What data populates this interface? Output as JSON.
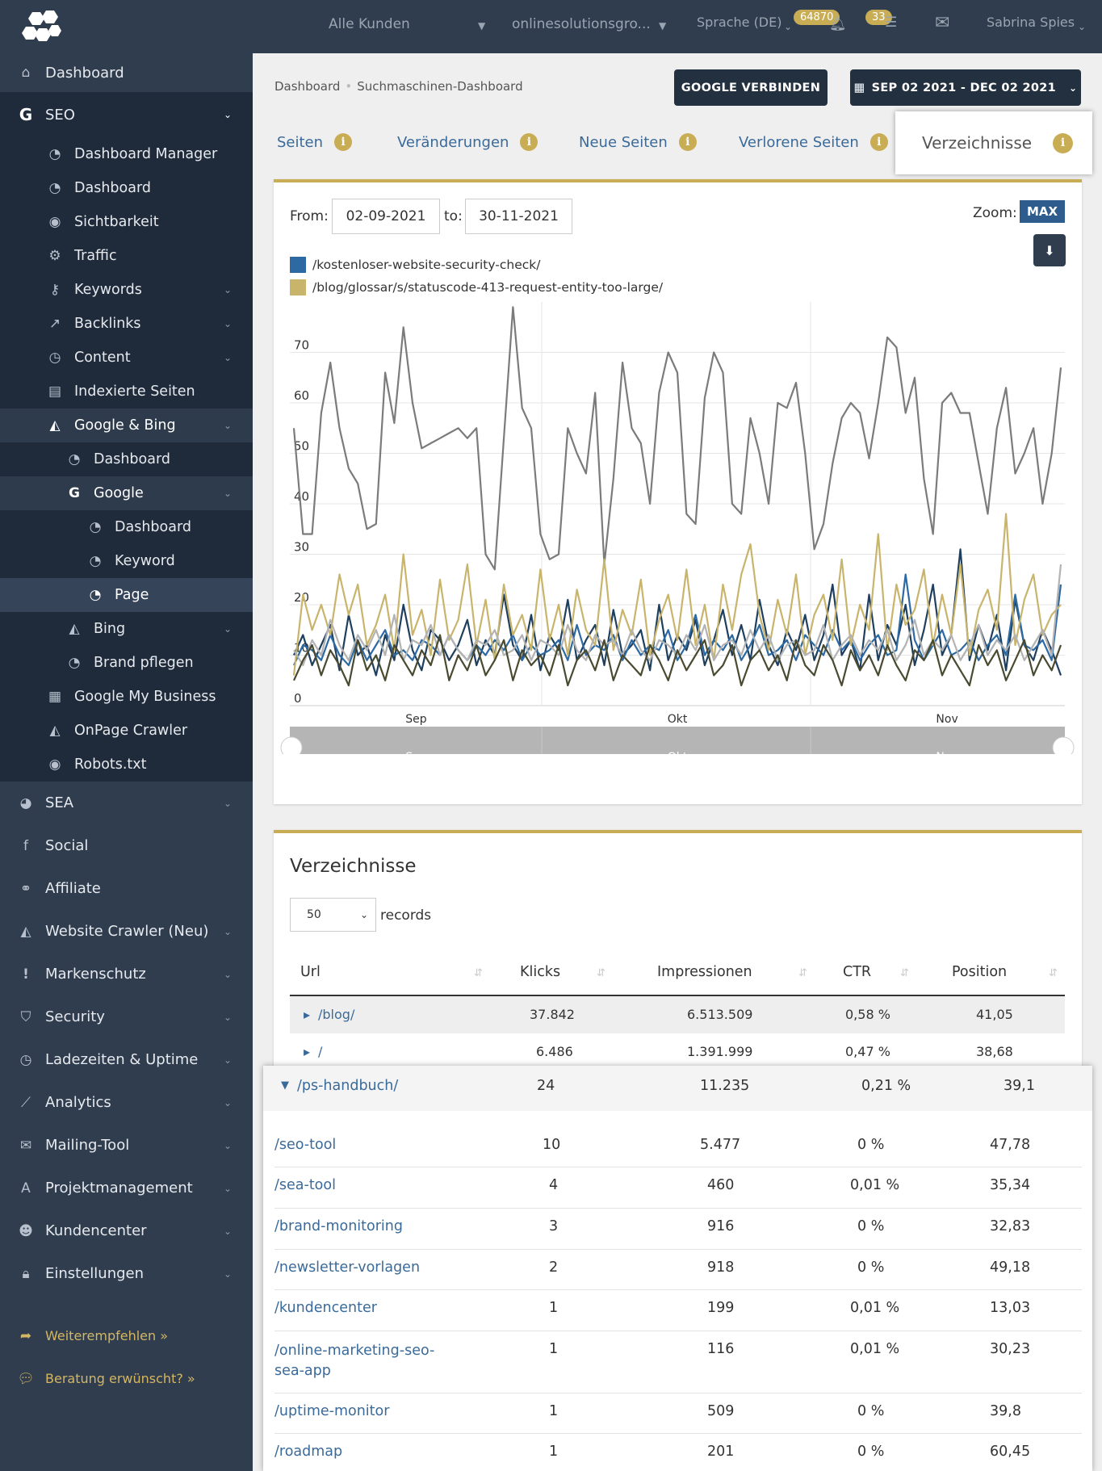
{
  "topbar": {
    "customers": "Alle Kunden",
    "project": "onlinesolutionsgro...",
    "language": "Sprache (DE)",
    "notif_count": "64870",
    "task_count": "33",
    "user": "Sabrina Spies"
  },
  "sidebar": {
    "dashboard": "Dashboard",
    "seo": "SEO",
    "dashboard_manager": "Dashboard Manager",
    "seo_dashboard": "Dashboard",
    "sichtbarkeit": "Sichtbarkeit",
    "traffic": "Traffic",
    "keywords": "Keywords",
    "backlinks": "Backlinks",
    "content": "Content",
    "indexierte": "Indexierte Seiten",
    "google_bing": "Google & Bing",
    "gb_dashboard": "Dashboard",
    "google": "Google",
    "g_dashboard": "Dashboard",
    "g_keyword": "Keyword",
    "g_page": "Page",
    "bing": "Bing",
    "brand": "Brand pflegen",
    "gmb": "Google My Business",
    "onpage": "OnPage Crawler",
    "robots": "Robots.txt",
    "sea": "SEA",
    "social": "Social",
    "affiliate": "Affiliate",
    "website_crawler": "Website Crawler (Neu)",
    "markenschutz": "Markenschutz",
    "security": "Security",
    "ladezeiten": "Ladezeiten & Uptime",
    "analytics": "Analytics",
    "mailing": "Mailing-Tool",
    "projekt": "Projektmanagement",
    "kundencenter": "Kundencenter",
    "einstellungen": "Einstellungen",
    "weiterempfehlen": "Weiterempfehlen »",
    "beratung": "Beratung erwünscht? »"
  },
  "breadcrumb": {
    "home": "Dashboard",
    "current": "Suchmaschinen-Dashboard"
  },
  "buttons": {
    "google_connect": "GOOGLE VERBINDEN",
    "date_range": "SEP 02 2021 - DEC 02 2021"
  },
  "tabs": {
    "seiten": "Seiten",
    "veraenderungen": "Veränderungen",
    "neue": "Neue Seiten",
    "verlorene": "Verlorene Seiten",
    "verzeichnisse": "Verzeichnisse"
  },
  "chart_panel": {
    "from_label": "From:",
    "from": "02-09-2021",
    "to_label": "to:",
    "to": "30-11-2021",
    "zoom_label": "Zoom:",
    "zoom": "MAX",
    "navigator_labels": [
      "Sep",
      "Okt",
      "Nov"
    ]
  },
  "chart_data": {
    "type": "line",
    "x_labels": [
      "Sep",
      "Okt",
      "Nov"
    ],
    "y_ticks": [
      0,
      10,
      20,
      30,
      40,
      50,
      60,
      70
    ],
    "ylim": [
      0,
      80
    ],
    "grid": true,
    "legend": [
      {
        "name": "/kostenloser-website-security-check/",
        "color": "#2d6aa3"
      },
      {
        "name": "/blog/glossar/s/statuscode-413-request-entity-too-large/",
        "color": "#c9b46c"
      }
    ],
    "series": [
      {
        "color": "#7b7b7b",
        "values": [
          55,
          34,
          34,
          58,
          68,
          55,
          47,
          44,
          35,
          36,
          66,
          56,
          75,
          60,
          51,
          52,
          53,
          54,
          55,
          53,
          55,
          30,
          27,
          53,
          79,
          59,
          55,
          34,
          29,
          30,
          55,
          50,
          46,
          62,
          28,
          45,
          68,
          55,
          52,
          40,
          62,
          70,
          66,
          38,
          36,
          61,
          70,
          66,
          40,
          38,
          57,
          50,
          40,
          60,
          59,
          64,
          50,
          31,
          36,
          48,
          57,
          60,
          58,
          49,
          60,
          73,
          71,
          58,
          65,
          45,
          34,
          60,
          62,
          58,
          58,
          48,
          38,
          55,
          63,
          46,
          50,
          55,
          40,
          50,
          67
        ]
      },
      {
        "color": "#1f3f5f",
        "values": [
          10,
          14,
          8,
          12,
          16,
          7,
          18,
          10,
          12,
          6,
          14,
          9,
          20,
          11,
          7,
          15,
          13,
          9,
          12,
          17,
          8,
          13,
          10,
          22,
          12,
          9,
          18,
          7,
          14,
          11,
          21,
          9,
          13,
          16,
          8,
          19,
          10,
          12,
          15,
          7,
          20,
          9,
          14,
          11,
          17,
          8,
          13,
          19,
          10,
          16,
          9,
          21,
          12,
          8,
          15,
          11,
          18,
          9,
          14,
          24,
          10,
          13,
          7,
          22,
          9,
          16,
          12,
          20,
          8,
          15,
          24,
          10,
          14,
          31,
          9,
          16,
          11,
          18,
          7,
          21,
          12,
          9,
          15,
          11,
          6
        ]
      },
      {
        "color": "#2d6aa3",
        "values": [
          8,
          12,
          11,
          9,
          14,
          10,
          8,
          13,
          9,
          12,
          15,
          10,
          11,
          9,
          13,
          12,
          10,
          14,
          11,
          9,
          12,
          10,
          13,
          11,
          14,
          9,
          12,
          10,
          11,
          13,
          9,
          16,
          10,
          12,
          11,
          14,
          9,
          13,
          10,
          12,
          11,
          15,
          9,
          12,
          18,
          10,
          13,
          11,
          14,
          9,
          12,
          16,
          10,
          11,
          13,
          9,
          14,
          12,
          10,
          15,
          11,
          13,
          9,
          12,
          14,
          10,
          11,
          26,
          13,
          9,
          12,
          15,
          10,
          11,
          13,
          9,
          12,
          14,
          10,
          22,
          12,
          11,
          13,
          9,
          24
        ]
      },
      {
        "color": "#c9b46c",
        "values": [
          6,
          22,
          15,
          20,
          14,
          26,
          18,
          24,
          12,
          16,
          22,
          11,
          30,
          14,
          19,
          10,
          25,
          13,
          17,
          28,
          12,
          21,
          9,
          24,
          14,
          18,
          11,
          27,
          13,
          20,
          10,
          23,
          15,
          12,
          29,
          11,
          19,
          14,
          25,
          10,
          17,
          22,
          13,
          27,
          12,
          20,
          9,
          24,
          15,
          26,
          32,
          18,
          11,
          21,
          14,
          26,
          10,
          18,
          22,
          13,
          29,
          12,
          20,
          15,
          34,
          11,
          24,
          16,
          19,
          27,
          12,
          22,
          14,
          28,
          10,
          19,
          23,
          15,
          38,
          12,
          21,
          26,
          14,
          18,
          20
        ]
      },
      {
        "color": "#b3b3b3",
        "values": [
          11,
          8,
          13,
          10,
          17,
          12,
          9,
          14,
          11,
          15,
          10,
          18,
          9,
          13,
          12,
          16,
          10,
          14,
          11,
          9,
          13,
          12,
          15,
          10,
          11,
          14,
          9,
          13,
          12,
          10,
          16,
          11,
          9,
          14,
          12,
          13,
          10,
          15,
          11,
          9,
          13,
          12,
          10,
          14,
          11,
          16,
          9,
          12,
          13,
          10,
          15,
          11,
          14,
          9,
          12,
          13,
          10,
          11,
          16,
          9,
          12,
          14,
          10,
          13,
          11,
          15,
          9,
          12,
          17,
          10,
          13,
          11,
          14,
          9,
          12,
          16,
          10,
          13,
          11,
          14,
          9,
          12,
          15,
          10,
          28
        ]
      },
      {
        "color": "#4a4a30",
        "values": [
          5,
          9,
          12,
          6,
          11,
          8,
          4,
          13,
          7,
          10,
          5,
          12,
          9,
          6,
          11,
          8,
          14,
          5,
          10,
          7,
          12,
          6,
          9,
          13,
          5,
          11,
          8,
          10,
          6,
          12,
          4,
          9,
          11,
          7,
          13,
          5,
          10,
          8,
          6,
          12,
          9,
          5,
          11,
          7,
          10,
          13,
          6,
          8,
          12,
          4,
          9,
          11,
          7,
          10,
          5,
          13,
          8,
          6,
          12,
          9,
          4,
          11,
          7,
          10,
          6,
          12,
          8,
          5,
          11,
          9,
          13,
          6,
          10,
          7,
          4,
          12,
          8,
          11,
          5,
          9,
          13,
          6,
          10,
          7,
          12
        ]
      }
    ]
  },
  "table": {
    "title": "Verzeichnisse",
    "page_size": "50",
    "records_label": "records",
    "headers": [
      "Url",
      "Klicks",
      "Impressionen",
      "CTR",
      "Position"
    ],
    "rows": [
      {
        "url": "/blog/",
        "klicks": "37.842",
        "impr": "6.513.509",
        "ctr": "0,58 %",
        "pos": "41,05"
      },
      {
        "url": "/",
        "klicks": "6.486",
        "impr": "1.391.999",
        "ctr": "0,47 %",
        "pos": "38,68"
      }
    ],
    "expanded": {
      "url": "/ps-handbuch/",
      "klicks": "24",
      "impr": "11.235",
      "ctr": "0,21 %",
      "pos": "39,1"
    },
    "children": [
      {
        "url": "/seo-tool",
        "klicks": "10",
        "impr": "5.477",
        "ctr": "0 %",
        "pos": "47,78"
      },
      {
        "url": "/sea-tool",
        "klicks": "4",
        "impr": "460",
        "ctr": "0,01 %",
        "pos": "35,34"
      },
      {
        "url": "/brand-monitoring",
        "klicks": "3",
        "impr": "916",
        "ctr": "0 %",
        "pos": "32,83"
      },
      {
        "url": "/newsletter-vorlagen",
        "klicks": "2",
        "impr": "918",
        "ctr": "0 %",
        "pos": "49,18"
      },
      {
        "url": "/kundencenter",
        "klicks": "1",
        "impr": "199",
        "ctr": "0,01 %",
        "pos": "13,03"
      },
      {
        "url": "/online-marketing-seo-sea-app",
        "klicks": "1",
        "impr": "116",
        "ctr": "0,01 %",
        "pos": "30,23"
      },
      {
        "url": "/uptime-monitor",
        "klicks": "1",
        "impr": "509",
        "ctr": "0 %",
        "pos": "39,8"
      },
      {
        "url": "/roadmap",
        "klicks": "1",
        "impr": "201",
        "ctr": "0 %",
        "pos": "60,45"
      }
    ]
  }
}
